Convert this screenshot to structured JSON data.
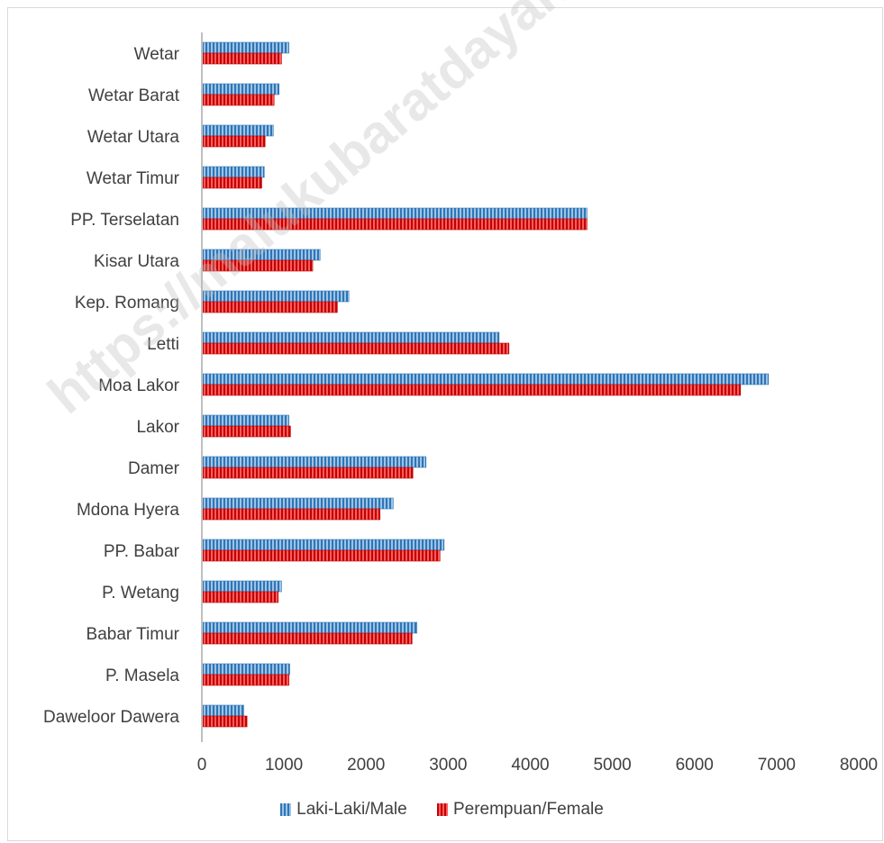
{
  "chart_data": {
    "type": "bar",
    "orientation": "horizontal",
    "categories": [
      "Wetar",
      "Wetar Barat",
      "Wetar Utara",
      "Wetar Timur",
      "PP. Terselatan",
      "Kisar Utara",
      "Kep. Romang",
      "Letti",
      "Moa Lakor",
      "Lakor",
      "Damer",
      "Mdona Hyera",
      "PP. Babar",
      "P. Wetang",
      "Babar Timur",
      "P. Masela",
      "Daweloor Dawera"
    ],
    "series": [
      {
        "name": "Laki-Laki/Male",
        "values": [
          1060,
          940,
          870,
          760,
          4690,
          1440,
          1790,
          3620,
          6900,
          1060,
          2730,
          2330,
          2950,
          970,
          2620,
          1070,
          510
        ]
      },
      {
        "name": "Perempuan/Female",
        "values": [
          970,
          880,
          770,
          730,
          4690,
          1350,
          1650,
          3740,
          6560,
          1080,
          2570,
          2170,
          2900,
          930,
          2560,
          1060,
          550
        ]
      }
    ],
    "xlim": [
      0,
      8000
    ],
    "xticks": [
      "0",
      "1000",
      "2000",
      "3000",
      "4000",
      "5000",
      "6000",
      "7000",
      "8000"
    ],
    "legend_position": "bottom",
    "grid": false,
    "colors": {
      "male": "#2e75b6",
      "male_light": "#9dc3e6",
      "female": "#c00000",
      "female_light": "#ff5b5b"
    }
  },
  "watermark": "https://malukubaratdayakab.bps.go.id"
}
